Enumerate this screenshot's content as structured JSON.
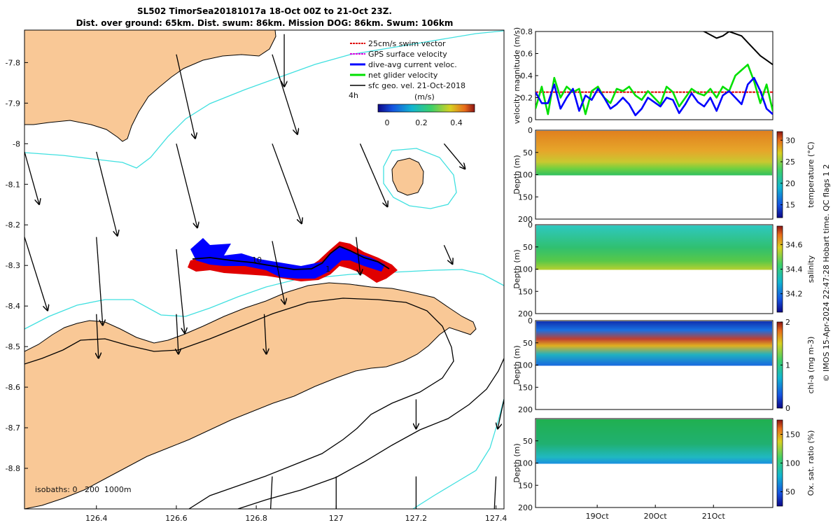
{
  "title": {
    "line1": "SL502 TimorSea20181017a 18-Oct 00Z to 21-Oct 23Z.",
    "line2": "Dist. over ground: 65km. Dist. swum: 86km. Mission DOG: 86km. Swum: 106km"
  },
  "colors": {
    "land": "#f9c896",
    "isobath_cyan": "#40e0e0",
    "isobath_black": "#000000",
    "swim_vector": "#e00000",
    "gps_velocity": "#e000e0",
    "dive_avg_current": "#0000ff",
    "net_glider": "#00e000",
    "sfc_geo_vel": "#000000"
  },
  "chart_data": [
    {
      "type": "map",
      "x_ticks": [
        "126.4",
        "126.6",
        "126.8",
        "127",
        "127.2",
        "127.4"
      ],
      "y_ticks": [
        "-7.8",
        "-7.9",
        "-8",
        "-8.1",
        "-8.2",
        "-8.3",
        "-8.4",
        "-8.5",
        "-8.6",
        "-8.7",
        "-8.8"
      ],
      "xlim": [
        126.22,
        127.42
      ],
      "ylim": [
        -8.9,
        -7.72
      ],
      "legend": {
        "placement": "top-right",
        "entries": [
          {
            "label": "25cm/s swim vector",
            "color": "#e00000"
          },
          {
            "label": "GPS surface velocity",
            "color": "#e000e0"
          },
          {
            "label": "dive-avg current veloc.",
            "color": "#0000ff"
          },
          {
            "label": "net glider velocity",
            "color": "#00e000"
          },
          {
            "label": "sfc geo. vel. 21-Oct-2018",
            "color": "#000000"
          }
        ]
      },
      "colorbar": {
        "label": "(m/s)",
        "ticks": [
          "0",
          "0.2",
          "0.4"
        ],
        "range": [
          0,
          0.5
        ]
      },
      "labels": {
        "hour_mark": "4h",
        "track_mark_a": "10",
        "track_mark_b": "1"
      },
      "isobaths_note": "isobaths: 0   200  1000m",
      "geo_velocity_arrows": [
        {
          "lon": 126.87,
          "lat": -7.73,
          "u": 0.0,
          "v": -0.25
        },
        {
          "lon": 126.6,
          "lat": -7.78,
          "u": 0.09,
          "v": -0.4
        },
        {
          "lon": 126.84,
          "lat": -7.78,
          "u": 0.12,
          "v": -0.38
        },
        {
          "lon": 126.6,
          "lat": -8.0,
          "u": 0.1,
          "v": -0.4
        },
        {
          "lon": 126.84,
          "lat": -8.0,
          "u": 0.14,
          "v": -0.38
        },
        {
          "lon": 127.06,
          "lat": -8.0,
          "u": 0.13,
          "v": -0.3
        },
        {
          "lon": 127.27,
          "lat": -8.0,
          "u": 0.1,
          "v": -0.12
        },
        {
          "lon": 126.22,
          "lat": -8.02,
          "u": 0.07,
          "v": -0.25
        },
        {
          "lon": 126.4,
          "lat": -8.02,
          "u": 0.1,
          "v": -0.4
        },
        {
          "lon": 126.22,
          "lat": -8.23,
          "u": 0.11,
          "v": -0.35
        },
        {
          "lon": 126.4,
          "lat": -8.23,
          "u": 0.03,
          "v": -0.42
        },
        {
          "lon": 126.6,
          "lat": -8.26,
          "u": 0.04,
          "v": -0.4
        },
        {
          "lon": 126.84,
          "lat": -8.24,
          "u": 0.06,
          "v": -0.3
        },
        {
          "lon": 127.05,
          "lat": -8.23,
          "u": 0.02,
          "v": -0.18
        },
        {
          "lon": 127.27,
          "lat": -8.25,
          "u": 0.04,
          "v": -0.09
        },
        {
          "lon": 126.4,
          "lat": -8.42,
          "u": 0.01,
          "v": -0.21
        },
        {
          "lon": 126.6,
          "lat": -8.42,
          "u": 0.01,
          "v": -0.19
        },
        {
          "lon": 126.82,
          "lat": -8.42,
          "u": 0.01,
          "v": -0.19
        },
        {
          "lon": 127.2,
          "lat": -8.63,
          "u": 0.0,
          "v": -0.14
        },
        {
          "lon": 127.42,
          "lat": -8.63,
          "u": -0.03,
          "v": -0.14
        },
        {
          "lon": 126.84,
          "lat": -8.82,
          "u": -0.01,
          "v": -0.2
        },
        {
          "lon": 127.0,
          "lat": -8.82,
          "u": 0.0,
          "v": -0.22
        },
        {
          "lon": 127.2,
          "lat": -8.82,
          "u": 0.0,
          "v": -0.2
        },
        {
          "lon": 127.4,
          "lat": -8.82,
          "u": -0.01,
          "v": -0.2
        }
      ]
    },
    {
      "type": "line",
      "ylabel": "velocity magnitude (m/s)",
      "ylim": [
        0,
        0.8
      ],
      "y_ticks": [
        "0",
        "0.2",
        "0.4",
        "0.6",
        "0.8"
      ],
      "series": [
        {
          "name": "25cm/s swim vector",
          "color": "#e00000",
          "values": [
            0.25,
            0.25
          ]
        },
        {
          "name": "net glider velocity",
          "color": "#00e000",
          "values": [
            0.1,
            0.3,
            0.05,
            0.38,
            0.2,
            0.3,
            0.25,
            0.28,
            0.05,
            0.26,
            0.3,
            0.2,
            0.15,
            0.28,
            0.26,
            0.3,
            0.22,
            0.18,
            0.26,
            0.2,
            0.14,
            0.3,
            0.25,
            0.12,
            0.2,
            0.28,
            0.24,
            0.22,
            0.28,
            0.2,
            0.3,
            0.26,
            0.4,
            0.45,
            0.5,
            0.35,
            0.15,
            0.32,
            0.08
          ]
        },
        {
          "name": "dive-avg current veloc.",
          "color": "#0000ff",
          "values": [
            0.25,
            0.15,
            0.15,
            0.32,
            0.1,
            0.2,
            0.28,
            0.08,
            0.22,
            0.18,
            0.28,
            0.2,
            0.1,
            0.14,
            0.2,
            0.14,
            0.04,
            0.1,
            0.2,
            0.16,
            0.12,
            0.2,
            0.18,
            0.06,
            0.14,
            0.24,
            0.16,
            0.12,
            0.2,
            0.08,
            0.22,
            0.26,
            0.2,
            0.14,
            0.32,
            0.38,
            0.26,
            0.1,
            0.05
          ]
        },
        {
          "name": "sfc geo. vel. 21-Oct-2018",
          "color": "#000000",
          "values": [
            null,
            null,
            null,
            null,
            null,
            null,
            null,
            null,
            null,
            null,
            null,
            null,
            null,
            null,
            null,
            null,
            null,
            null,
            null,
            null,
            null,
            null,
            null,
            null,
            null,
            null,
            0.82,
            0.8,
            0.77,
            0.74,
            0.76,
            0.8,
            0.78,
            0.76,
            0.7,
            0.64,
            0.58,
            0.54,
            0.5
          ]
        }
      ]
    },
    {
      "type": "heatmap",
      "ylabel": "Depth (m)",
      "clabel": "temperature (°C)",
      "y_ticks": [
        "0",
        "50",
        "100",
        "150",
        "200"
      ],
      "c_ticks": [
        "15",
        "20",
        "25",
        "30"
      ],
      "crange": [
        12,
        32
      ],
      "profile_depth_m": 100
    },
    {
      "type": "heatmap",
      "ylabel": "Depth (m)",
      "clabel": "salinity",
      "y_ticks": [
        "0",
        "50",
        "100",
        "150",
        "200"
      ],
      "c_ticks": [
        "34.2",
        "34.4",
        "34.6"
      ],
      "crange": [
        34.05,
        34.75
      ],
      "profile_depth_m": 100
    },
    {
      "type": "heatmap",
      "ylabel": "Depth (m)",
      "clabel": "chl-a (mg m-3)",
      "y_ticks": [
        "0",
        "50",
        "100",
        "150",
        "200"
      ],
      "c_ticks": [
        "0",
        "1",
        "2"
      ],
      "crange": [
        0,
        2
      ],
      "profile_depth_m": 100
    },
    {
      "type": "heatmap",
      "ylabel": "Depth (m)",
      "clabel": "Ox. sat. ratio (%)",
      "y_ticks": [
        "50",
        "100",
        "150",
        "200"
      ],
      "c_ticks": [
        "50",
        "100",
        "150"
      ],
      "crange": [
        25,
        175
      ],
      "profile_depth_m": 100,
      "x_ticks": [
        "19Oct",
        "20Oct",
        "21Oct"
      ]
    }
  ],
  "credit": "© IMOS 15-Apr-2024 22:47:28 Hobart time. QC flags 1  2"
}
